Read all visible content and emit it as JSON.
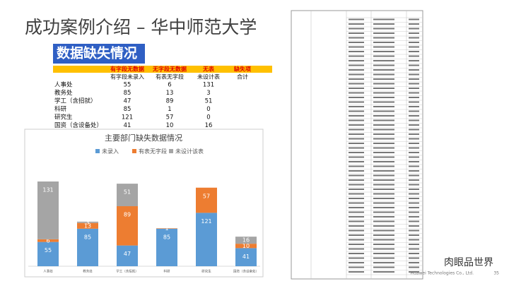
{
  "slide": {
    "title": "成功案例介绍 – 华中师范大学",
    "watermark": "肉眼品世界",
    "footer": "Huawei Technologies Co., Ltd.",
    "page": "35"
  },
  "table": {
    "title": "数据缺失情况",
    "header_top": [
      "有字段无数据",
      "无字段无数据",
      "无表",
      "缺失项"
    ],
    "header": [
      "有字段未录入",
      "有表无字段",
      "未设计表",
      "合计"
    ],
    "rows": [
      [
        "人事处",
        "55",
        "6",
        "131"
      ],
      [
        "教务处",
        "85",
        "13",
        "3"
      ],
      [
        "学工（含招就）",
        "47",
        "89",
        "51"
      ],
      [
        "科研",
        "85",
        "1",
        "0"
      ],
      [
        "研究生",
        "121",
        "57",
        "0"
      ],
      [
        "国资（含设备处）",
        "41",
        "10",
        "16"
      ]
    ]
  },
  "chart_data": {
    "type": "bar",
    "stacked": true,
    "title": "主要部门缺失数据情况",
    "categories": [
      "人事处",
      "教务处",
      "学工（含招就）",
      "科研",
      "研究生",
      "国资（含设备处）"
    ],
    "series": [
      {
        "name": "未录入",
        "color": "#5b9bd5",
        "values": [
          55,
          85,
          47,
          85,
          121,
          41
        ]
      },
      {
        "name": "有表无字段",
        "color": "#ed7d31",
        "values": [
          6,
          13,
          89,
          1,
          57,
          10
        ]
      },
      {
        "name": "未设计该表",
        "color": "#a5a5a5",
        "values": [
          131,
          3,
          51,
          0,
          0,
          16
        ]
      }
    ]
  }
}
